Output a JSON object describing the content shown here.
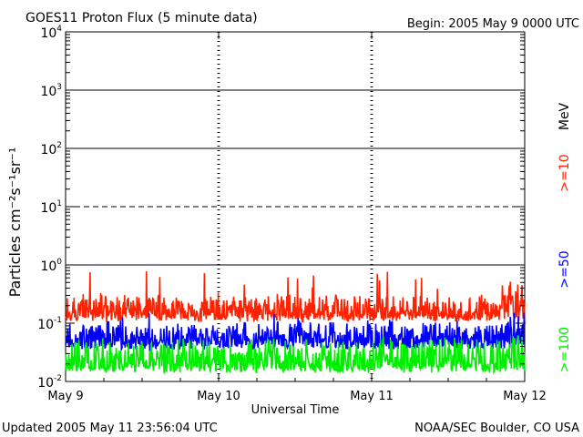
{
  "chart_data": {
    "type": "line",
    "title": "GOES11 Proton Flux (5 minute data)",
    "begin_label": "Begin: 2005 May 9 0000 UTC",
    "xlabel": "Universal Time",
    "ylabel": "Particles cm⁻²s⁻¹sr⁻¹",
    "y_scale": "log",
    "ylim": [
      0.01,
      10000
    ],
    "y_ticks": [
      {
        "base": "10",
        "exp": "4"
      },
      {
        "base": "10",
        "exp": "3"
      },
      {
        "base": "10",
        "exp": "2"
      },
      {
        "base": "10",
        "exp": "1"
      },
      {
        "base": "10",
        "exp": "0"
      },
      {
        "base": "10",
        "exp": "-1"
      },
      {
        "base": "10",
        "exp": "-2"
      }
    ],
    "x_range_days": [
      "2005-05-09",
      "2005-05-12"
    ],
    "x_ticks": [
      "May 9",
      "May 10",
      "May 11",
      "May 12"
    ],
    "legend_unit": "MeV",
    "series": [
      {
        "name": ">=10",
        "color": "#ff2200",
        "baseline": 0.12,
        "typical_peak": 0.3,
        "max_peak": 0.8
      },
      {
        "name": ">=50",
        "color": "#0000ff",
        "baseline": 0.04,
        "typical_peak": 0.1,
        "max_peak": 0.15
      },
      {
        "name": ">=100",
        "color": "#00ee00",
        "baseline": 0.016,
        "typical_peak": 0.05,
        "max_peak": 0.06
      }
    ],
    "alert_line": 10,
    "grid": true
  },
  "footer": {
    "updated": "Updated 2005 May 11 23:56:04 UTC",
    "source": "NOAA/SEC Boulder, CO USA"
  }
}
